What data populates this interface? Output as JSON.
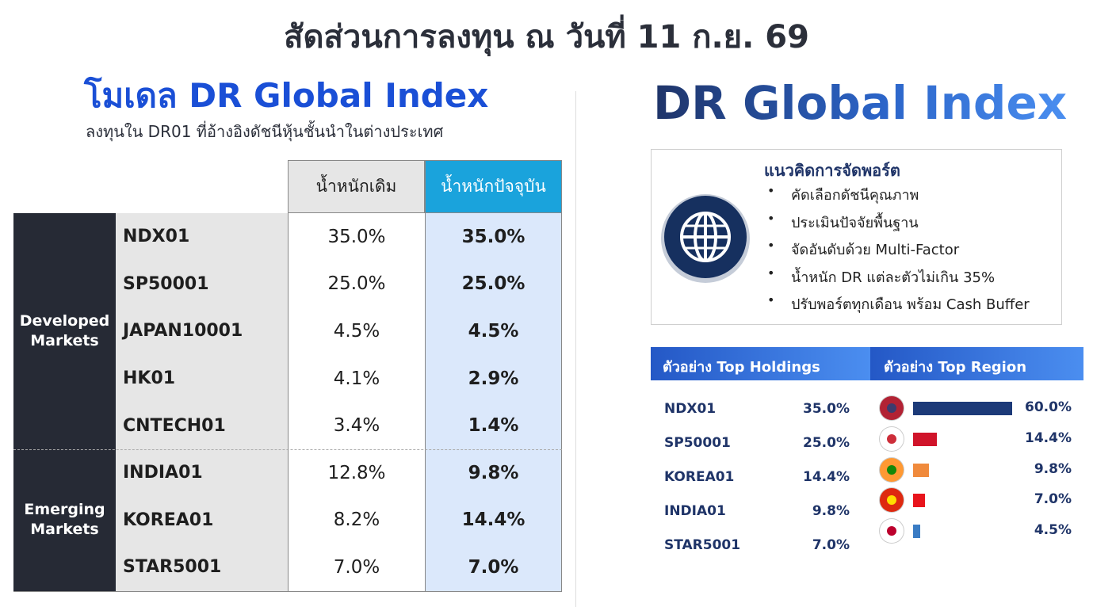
{
  "title": "สัดส่วนการลงทุน ณ วันที่ 11 ก.ย. 69",
  "model": {
    "title": "โมเดล DR Global Index",
    "subtitle": "ลงทุนใน DR01 ที่อ้างอิงดัชนีหุ้นชั้นนำในต่างประเทศ"
  },
  "table": {
    "headers": [
      "น้ำหนักเดิม",
      "น้ำหนักปัจจุบัน"
    ],
    "groups": [
      {
        "label": "Developed Markets",
        "rows": [
          [
            "NDX01",
            "35.0%",
            "35.0%"
          ],
          [
            "SP50001",
            "25.0%",
            "25.0%"
          ],
          [
            "JAPAN10001",
            "4.5%",
            "4.5%"
          ],
          [
            "HK01",
            "4.1%",
            "2.9%"
          ],
          [
            "CNTECH01",
            "3.4%",
            "1.4%"
          ]
        ]
      },
      {
        "label": "Emerging Markets",
        "rows": [
          [
            "INDIA01",
            "12.8%",
            "9.8%"
          ],
          [
            "KOREA01",
            "8.2%",
            "14.4%"
          ],
          [
            "STAR5001",
            "7.0%",
            "7.0%"
          ]
        ]
      }
    ]
  },
  "brand": "DR Global Index",
  "concept": {
    "title": "แนวคิดการจัดพอร์ต",
    "items": [
      "คัดเลือกดัชนีคุณภาพ",
      "ประเมินปัจจัยพื้นฐาน",
      "จัดอันดับด้วย Multi-Factor",
      "น้ำหนัก DR แต่ละตัวไม่เกิน 35%",
      "ปรับพอร์ตทุกเดือน พร้อม Cash Buffer"
    ]
  },
  "top_holdings": {
    "title": "ตัวอย่าง Top Holdings",
    "rows": [
      [
        "NDX01",
        "35.0%"
      ],
      [
        "SP50001",
        "25.0%"
      ],
      [
        "KOREA01",
        "14.4%"
      ],
      [
        "INDIA01",
        "9.8%"
      ],
      [
        "STAR5001",
        "7.0%"
      ]
    ]
  },
  "top_region": {
    "title": "ตัวอย่าง Top Region",
    "values": [
      60.0,
      14.4,
      9.8,
      7.0,
      4.5
    ],
    "value_labels": [
      "60.0%",
      "14.4%",
      "9.8%",
      "7.0%",
      "4.5%"
    ],
    "colors": [
      "#1c3a78",
      "#d0142a",
      "#f08a3c",
      "#e8141c",
      "#3a7cc4"
    ]
  }
}
